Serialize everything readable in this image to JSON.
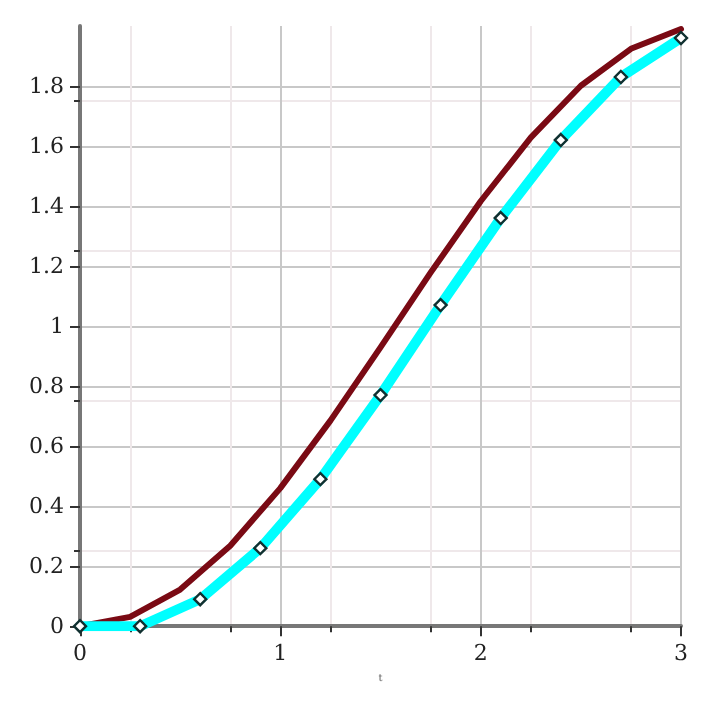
{
  "chart_data": {
    "type": "line",
    "xlabel": "t",
    "xlim": [
      0,
      3
    ],
    "ylim": [
      0,
      2
    ],
    "xticks": [
      0,
      1,
      2,
      3
    ],
    "yticks": [
      0,
      0.2,
      0.4,
      0.6,
      0.8,
      1,
      1.2,
      1.4,
      1.6,
      1.8
    ],
    "grid": true,
    "series": [
      {
        "color": "#7a0a14",
        "marker": "none",
        "x": [
          0,
          0.25,
          0.5,
          0.75,
          1,
          1.25,
          1.5,
          1.75,
          2,
          2.25,
          2.5,
          2.75,
          3
        ],
        "values": [
          0,
          0.031,
          0.122,
          0.268,
          0.46,
          0.685,
          0.929,
          1.178,
          1.416,
          1.628,
          1.801,
          1.924,
          1.99
        ]
      },
      {
        "color": "#00ffff",
        "marker": "diamond",
        "x": [
          0,
          0.3,
          0.6,
          0.9,
          1.2,
          1.5,
          1.8,
          2.1,
          2.4,
          2.7,
          3
        ],
        "values": [
          0,
          0,
          0.09,
          0.26,
          0.49,
          0.77,
          1.07,
          1.36,
          1.62,
          1.83,
          1.96
        ]
      }
    ]
  }
}
